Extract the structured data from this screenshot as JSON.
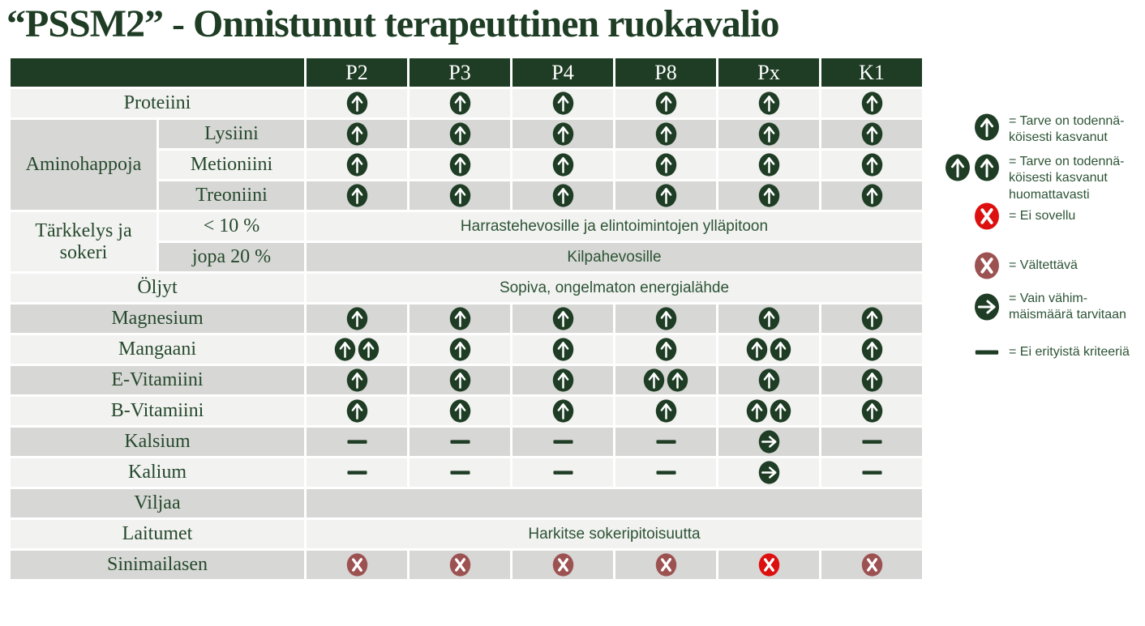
{
  "title": "“PSSM2” - Onnistunut terapeuttinen ruokavalio",
  "colors": {
    "dark_green": "#1e3d24",
    "label_green": "#26492c",
    "sans_green": "#2d5435",
    "row_light": "#f2f2f1",
    "row_gray": "#d7d7d5",
    "red": "#dd1010",
    "maroon": "#9d5252"
  },
  "table": {
    "columns": [
      "P2",
      "P3",
      "P4",
      "P8",
      "Px",
      "K1"
    ],
    "rows": [
      {
        "label": "Proteiini",
        "cells": [
          "up",
          "up",
          "up",
          "up",
          "up",
          "up"
        ]
      },
      {
        "group": "Aminohappoja",
        "label": "Lysiini",
        "cells": [
          "up",
          "up",
          "up",
          "up",
          "up",
          "up"
        ]
      },
      {
        "label": "Metioniini",
        "cells": [
          "up",
          "up",
          "up",
          "up",
          "up",
          "up"
        ]
      },
      {
        "label": "Treoniini",
        "cells": [
          "up",
          "up",
          "up",
          "up",
          "up",
          "up"
        ]
      },
      {
        "group": "Tärkkelys ja sokeri",
        "label": "< 10 %",
        "merged": "Harrastehevosille ja elintoimintojen ylläpitoon"
      },
      {
        "label": "jopa  20 %",
        "merged": "Kilpahevosille"
      },
      {
        "label": "Öljyt",
        "merged": "Sopiva, ongelmaton energialähde"
      },
      {
        "label": "Magnesium",
        "cells": [
          "up",
          "up",
          "up",
          "up",
          "up",
          "up"
        ]
      },
      {
        "label": "Mangaani",
        "cells": [
          "up2",
          "up",
          "up",
          "up",
          "up2",
          "up"
        ]
      },
      {
        "label": "E-Vitamiini",
        "cells": [
          "up",
          "up",
          "up",
          "up2",
          "up",
          "up"
        ]
      },
      {
        "label": "B-Vitamiini",
        "cells": [
          "up",
          "up",
          "up",
          "up",
          "up2",
          "up"
        ]
      },
      {
        "label": "Kalsium",
        "cells": [
          "dash",
          "dash",
          "dash",
          "dash",
          "right",
          "dash"
        ]
      },
      {
        "label": "Kalium",
        "cells": [
          "dash",
          "dash",
          "dash",
          "dash",
          "right",
          "dash"
        ]
      },
      {
        "label": "Viljaa",
        "merged": ""
      },
      {
        "label": "Laitumet",
        "merged": "Harkitse sokeripitoisuutta"
      },
      {
        "label": "Sinimailasen",
        "cells": [
          "x-maroon",
          "x-maroon",
          "x-maroon",
          "x-maroon",
          "x-red",
          "x-maroon"
        ]
      }
    ]
  },
  "legend": {
    "items": [
      {
        "icon": "up",
        "text": "= Tarve on todennä-\nköisesti kasvanut"
      },
      {
        "icon": "up2",
        "text": "= Tarve on todennä-\nköisesti kasvanut\nhuomattavasti"
      },
      {
        "icon": "x-red",
        "text": "= Ei sovellu"
      },
      {
        "icon": "x-maroon",
        "text": "= Vältettävä"
      },
      {
        "icon": "right",
        "text": "= Vain vähim-\nmäismäärä tarvitaan"
      },
      {
        "icon": "dash",
        "text": "= Ei erityistä kriteeriä"
      }
    ]
  }
}
